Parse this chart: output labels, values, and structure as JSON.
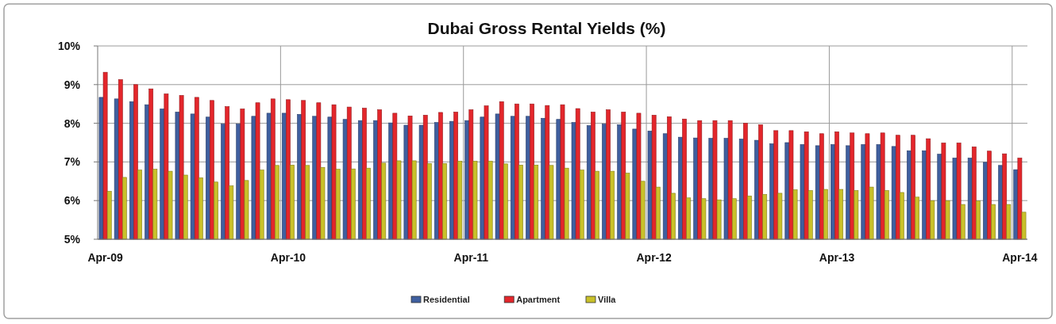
{
  "chart_data": {
    "type": "bar",
    "title": "Dubai Gross Rental Yields (%)",
    "categories": [
      "Apr-09",
      null,
      null,
      null,
      null,
      null,
      null,
      null,
      null,
      null,
      null,
      null,
      "Apr-10",
      null,
      null,
      null,
      null,
      null,
      null,
      null,
      null,
      null,
      null,
      null,
      "Apr-11",
      null,
      null,
      null,
      null,
      null,
      null,
      null,
      null,
      null,
      null,
      null,
      "Apr-12",
      null,
      null,
      null,
      null,
      null,
      null,
      null,
      null,
      null,
      null,
      null,
      "Apr-13",
      null,
      null,
      null,
      null,
      null,
      null,
      null,
      null,
      null,
      null,
      null,
      "Apr-14"
    ],
    "series": [
      {
        "name": "Residential",
        "color": "#3f5f9f",
        "values": [
          8.67,
          8.63,
          8.56,
          8.48,
          8.37,
          8.29,
          8.24,
          8.16,
          7.98,
          7.98,
          8.18,
          8.26,
          8.26,
          8.23,
          8.18,
          8.16,
          8.1,
          8.07,
          8.07,
          8.01,
          7.95,
          7.95,
          8.02,
          8.05,
          8.07,
          8.16,
          8.24,
          8.18,
          8.18,
          8.13,
          8.1,
          8.02,
          7.94,
          7.98,
          7.96,
          7.85,
          7.8,
          7.73,
          7.64,
          7.62,
          7.61,
          7.61,
          7.59,
          7.56,
          7.47,
          7.5,
          7.45,
          7.42,
          7.45,
          7.42,
          7.45,
          7.45,
          7.4,
          7.29,
          7.29,
          7.2,
          7.1,
          7.1,
          6.99,
          6.91,
          6.8
        ]
      },
      {
        "name": "Apartment",
        "color": "#e3262b",
        "values": [
          9.32,
          9.13,
          9.0,
          8.89,
          8.76,
          8.72,
          8.67,
          8.59,
          8.43,
          8.37,
          8.53,
          8.63,
          8.61,
          8.59,
          8.53,
          8.48,
          8.42,
          8.39,
          8.35,
          8.26,
          8.19,
          8.21,
          8.28,
          8.29,
          8.35,
          8.45,
          8.56,
          8.5,
          8.5,
          8.46,
          8.48,
          8.38,
          8.29,
          8.35,
          8.29,
          8.26,
          8.21,
          8.17,
          8.11,
          8.07,
          8.07,
          8.07,
          8.0,
          7.96,
          7.81,
          7.81,
          7.78,
          7.73,
          7.78,
          7.75,
          7.73,
          7.75,
          7.69,
          7.69,
          7.6,
          7.49,
          7.49,
          7.39,
          7.28,
          7.21,
          7.1
        ]
      },
      {
        "name": "Villa",
        "color": "#c9c12a",
        "values": [
          6.24,
          6.6,
          6.79,
          6.81,
          6.76,
          6.66,
          6.59,
          6.48,
          6.38,
          6.52,
          6.79,
          6.91,
          6.92,
          6.91,
          6.86,
          6.81,
          6.82,
          6.84,
          6.97,
          7.03,
          7.03,
          6.96,
          6.96,
          7.02,
          7.02,
          7.02,
          6.95,
          6.92,
          6.92,
          6.91,
          6.84,
          6.79,
          6.76,
          6.76,
          6.71,
          6.5,
          6.35,
          6.19,
          6.07,
          6.05,
          6.02,
          6.05,
          6.12,
          6.16,
          6.19,
          6.28,
          6.26,
          6.29,
          6.29,
          6.26,
          6.35,
          6.26,
          6.21,
          6.09,
          6.0,
          6.0,
          5.9,
          5.99,
          5.9,
          5.9,
          5.7
        ]
      }
    ],
    "ylim": [
      5,
      10
    ],
    "yticks": [
      {
        "value": 5,
        "label": "5%"
      },
      {
        "value": 6,
        "label": "6%"
      },
      {
        "value": 7,
        "label": "7%"
      },
      {
        "value": 8,
        "label": "8%"
      },
      {
        "value": 9,
        "label": "9%"
      },
      {
        "value": 10,
        "label": "10%"
      }
    ],
    "grid": true,
    "legend": "bottom"
  }
}
